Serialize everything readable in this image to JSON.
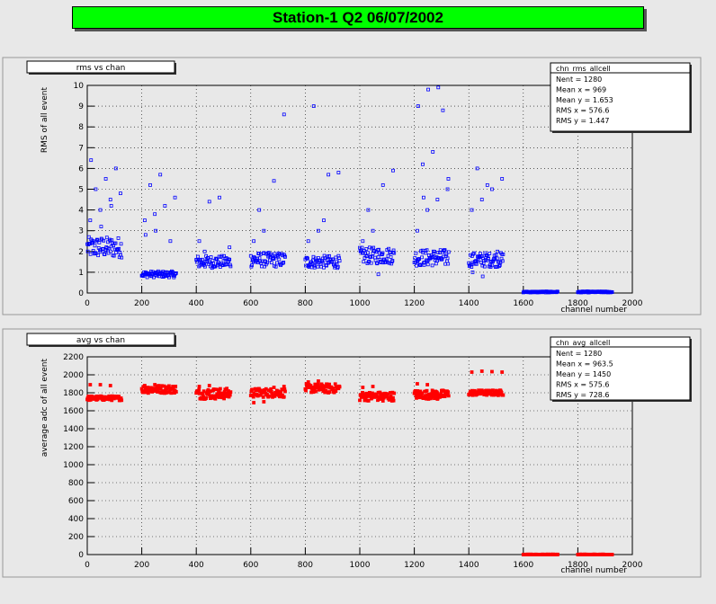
{
  "page_title": "Station-1 Q2 06/07/2002",
  "colors": {
    "background": "#e8e8e8",
    "title_bg": "#00ff00",
    "rms_marker": "#0000ff",
    "avg_marker": "#ff0000",
    "grid": "#000000"
  },
  "chart_data": [
    {
      "type": "scatter",
      "title": "rms vs chan",
      "xlabel": "channel number",
      "ylabel": "RMS of all event",
      "xlim": [
        0,
        2000
      ],
      "ylim": [
        0,
        10
      ],
      "xticks": [
        "0",
        "200",
        "400",
        "600",
        "800",
        "1000",
        "1200",
        "1400",
        "1600",
        "1800",
        "2000"
      ],
      "yticks": [
        "0",
        "1",
        "2",
        "3",
        "4",
        "5",
        "6",
        "7",
        "8",
        "9",
        "10"
      ],
      "grid": true,
      "marker": "open-square",
      "color": "#0000ff",
      "stats": {
        "name": "chn_rms_allcell",
        "lines": [
          "Nent = 1280",
          "Mean x =    969",
          "Mean y =  1.653",
          "RMS x =  576.6",
          "RMS y =  1.447"
        ]
      },
      "groups": [
        {
          "x0": 0,
          "x1": 128,
          "base": 2.2,
          "spread": 0.5,
          "high": [
            3.5,
            4.0,
            4.5,
            4.8,
            5.0,
            5.5,
            6.0,
            6.4,
            3.2,
            4.2
          ]
        },
        {
          "x0": 200,
          "x1": 328,
          "base": 0.9,
          "spread": 0.15,
          "high": [
            3.5,
            3.8,
            4.2,
            4.6,
            5.2,
            5.7,
            2.5,
            2.8,
            3.0
          ]
        },
        {
          "x0": 400,
          "x1": 528,
          "base": 1.5,
          "spread": 0.3,
          "high": [
            2.5,
            4.4,
            4.6,
            2.2,
            2.0
          ]
        },
        {
          "x0": 600,
          "x1": 728,
          "base": 1.6,
          "spread": 0.35,
          "high": [
            2.5,
            3.0,
            5.4,
            8.6,
            4.0
          ]
        },
        {
          "x0": 800,
          "x1": 928,
          "base": 1.5,
          "spread": 0.3,
          "high": [
            2.5,
            3.0,
            5.7,
            5.8,
            9.0,
            3.5
          ]
        },
        {
          "x0": 1000,
          "x1": 1128,
          "base": 1.8,
          "spread": 0.4,
          "high": [
            2.5,
            3.0,
            5.2,
            5.9,
            4.0,
            0.9
          ]
        },
        {
          "x0": 1200,
          "x1": 1328,
          "base": 1.7,
          "spread": 0.4,
          "high": [
            3.0,
            4.0,
            4.5,
            5.0,
            6.2,
            6.8,
            8.8,
            9.0,
            9.8,
            9.9,
            5.5,
            4.6
          ]
        },
        {
          "x0": 1400,
          "x1": 1528,
          "base": 1.6,
          "spread": 0.35,
          "high": [
            4.0,
            4.5,
            5.0,
            5.5,
            6.0,
            5.2,
            2.0,
            1.0,
            0.8
          ]
        },
        {
          "x0": 1600,
          "x1": 1728,
          "base": 0.05,
          "spread": 0.03,
          "high": []
        },
        {
          "x0": 1800,
          "x1": 1928,
          "base": 0.05,
          "spread": 0.03,
          "high": []
        }
      ]
    },
    {
      "type": "scatter",
      "title": "avg vs chan",
      "xlabel": "channel number",
      "ylabel": "average adc of all event",
      "xlim": [
        0,
        2000
      ],
      "ylim": [
        0,
        2200
      ],
      "xticks": [
        "0",
        "200",
        "400",
        "600",
        "800",
        "1000",
        "1200",
        "1400",
        "1600",
        "1800",
        "2000"
      ],
      "yticks": [
        "0",
        "200",
        "400",
        "600",
        "800",
        "1000",
        "1200",
        "1400",
        "1600",
        "1800",
        "2000",
        "2200"
      ],
      "grid": true,
      "marker": "filled-square",
      "color": "#ff0000",
      "stats": {
        "name": "chn_avg_allcell",
        "lines": [
          "Nent = 1280",
          "Mean x =  963.5",
          "Mean y =   1450",
          "RMS x =  575.6",
          "RMS y =  728.6"
        ]
      },
      "groups": [
        {
          "x0": 0,
          "x1": 128,
          "base": 1740,
          "spread": 25,
          "high": [
            1890,
            1890,
            1880
          ]
        },
        {
          "x0": 200,
          "x1": 328,
          "base": 1840,
          "spread": 45,
          "high": [
            1880,
            1890,
            1800
          ]
        },
        {
          "x0": 400,
          "x1": 528,
          "base": 1790,
          "spread": 60,
          "high": [
            1870,
            1880,
            1750
          ]
        },
        {
          "x0": 600,
          "x1": 728,
          "base": 1800,
          "spread": 50,
          "high": [
            1690,
            1700,
            1860,
            1870
          ]
        },
        {
          "x0": 800,
          "x1": 928,
          "base": 1850,
          "spread": 50,
          "high": [
            1920,
            1930,
            1800
          ]
        },
        {
          "x0": 1000,
          "x1": 1128,
          "base": 1760,
          "spread": 50,
          "high": [
            1860,
            1870,
            1710
          ]
        },
        {
          "x0": 1200,
          "x1": 1328,
          "base": 1780,
          "spread": 50,
          "high": [
            1900,
            1890,
            1730
          ]
        },
        {
          "x0": 1400,
          "x1": 1528,
          "base": 1800,
          "spread": 30,
          "high": [
            2030,
            2040,
            2035,
            2030
          ]
        },
        {
          "x0": 1600,
          "x1": 1728,
          "base": 0,
          "spread": 3,
          "high": []
        },
        {
          "x0": 1800,
          "x1": 1928,
          "base": 0,
          "spread": 3,
          "high": []
        }
      ]
    }
  ]
}
